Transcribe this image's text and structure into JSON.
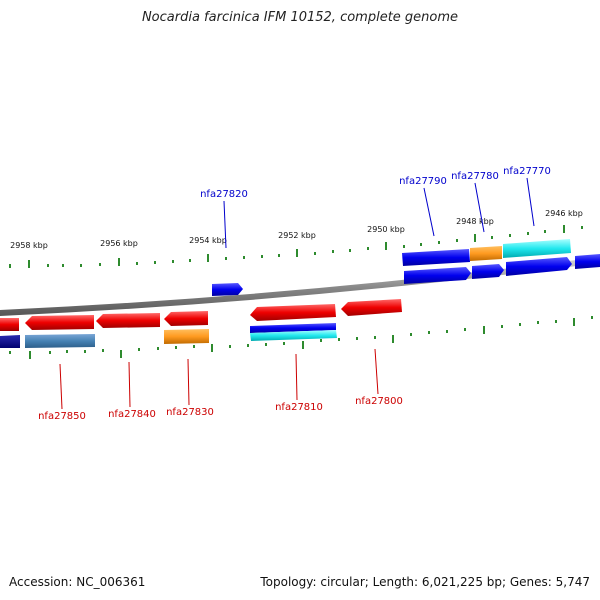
{
  "title": "Nocardia farcinica IFM 10152, complete genome",
  "footer": {
    "accession": "Accession: NC_006361",
    "summary": "Topology: circular; Length: 6,021,225 bp; Genes: 5,747"
  },
  "colors": {
    "plus_label": "#0000cc",
    "minus_label": "#cc0000",
    "tick": "#2e8b2e",
    "backbone": "#808080"
  },
  "scale_labels": [
    "2958 kbp",
    "2956 kbp",
    "2954 kbp",
    "2952 kbp",
    "2950 kbp",
    "2948 kbp",
    "2946 kbp"
  ],
  "gene_labels": {
    "plus": [
      "nfa27820",
      "nfa27790",
      "nfa27780",
      "nfa27770"
    ],
    "minus": [
      "nfa27850",
      "nfa27840",
      "nfa27830",
      "nfa27810",
      "nfa27800"
    ]
  }
}
